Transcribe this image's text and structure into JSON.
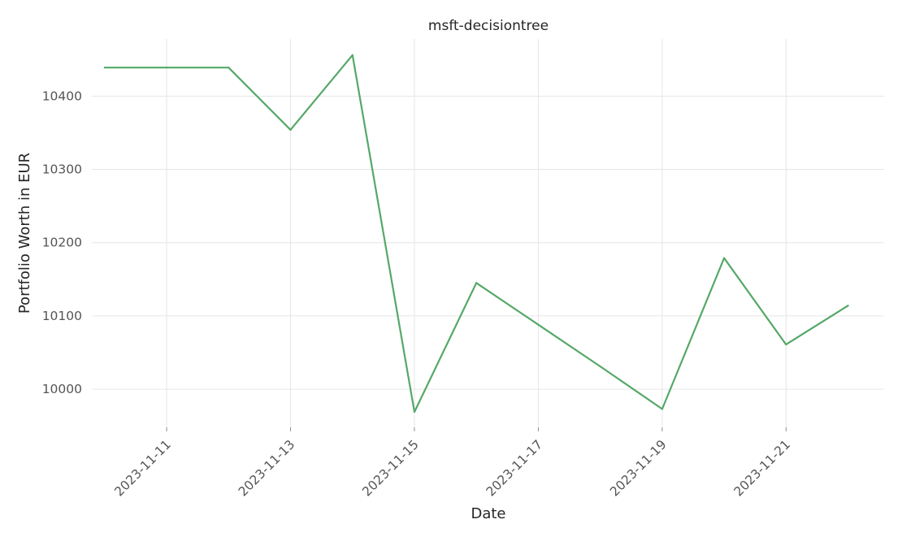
{
  "chart_data": {
    "type": "line",
    "title": "msft-decisiontree",
    "xlabel": "Date",
    "ylabel": "Portfolio Worth in EUR",
    "x_ticks": [
      "2023-11-11",
      "2023-11-13",
      "2023-11-15",
      "2023-11-17",
      "2023-11-19",
      "2023-11-21"
    ],
    "y_ticks": [
      10000,
      10100,
      10200,
      10300,
      10400
    ],
    "xlim": [
      "2023-11-09T19:00",
      "2023-11-22T14:00"
    ],
    "ylim": [
      9948,
      10478
    ],
    "grid": true,
    "series": [
      {
        "color": "#55a868",
        "x": [
          "2023-11-10",
          "2023-11-11",
          "2023-11-12",
          "2023-11-13",
          "2023-11-14",
          "2023-11-15",
          "2023-11-16",
          "2023-11-17",
          "2023-11-18",
          "2023-11-19",
          "2023-11-20",
          "2023-11-21",
          "2023-11-22"
        ],
        "values": [
          10439,
          10439,
          10439,
          10354,
          10456,
          9969,
          10145,
          10088,
          10031,
          9973,
          10179,
          10061,
          10114
        ]
      }
    ]
  }
}
